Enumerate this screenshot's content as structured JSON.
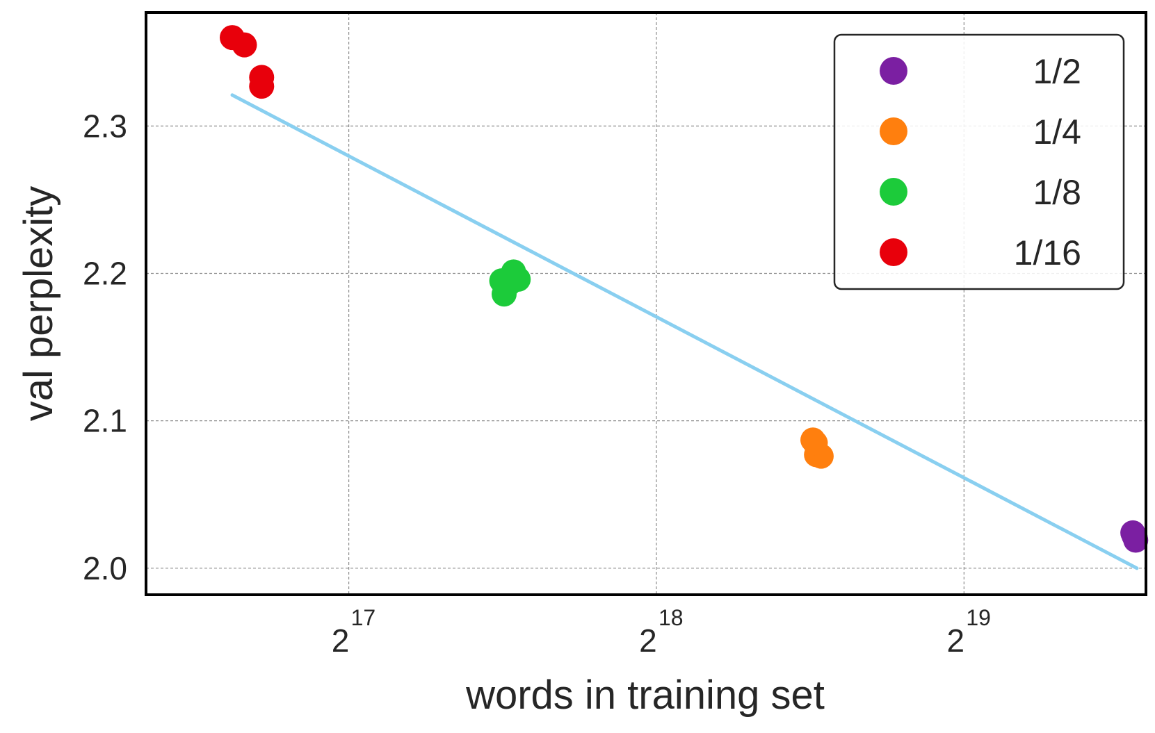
{
  "chart_data": {
    "type": "scatter",
    "title": "",
    "xlabel": "words in training set",
    "ylabel": "val perplexity",
    "x_scale": "log2",
    "x_ticks": [
      {
        "value": 131072,
        "base": "2",
        "exp": "17"
      },
      {
        "value": 262144,
        "base": "2",
        "exp": "18"
      },
      {
        "value": 524288,
        "base": "2",
        "exp": "19"
      }
    ],
    "y_ticks": [
      {
        "value": 2.0,
        "label": "2.0"
      },
      {
        "value": 2.1,
        "label": "2.1"
      },
      {
        "value": 2.2,
        "label": "2.2"
      },
      {
        "value": 2.3,
        "label": "2.3"
      }
    ],
    "xlim": [
      83000,
      790000
    ],
    "ylim": [
      1.982,
      2.377
    ],
    "grid": true,
    "legend_position": "top-right",
    "series": [
      {
        "name": "1/2",
        "color": "#7b1fa2",
        "points": [
          [
            767000,
            2.024
          ],
          [
            769000,
            2.022
          ],
          [
            772000,
            2.019
          ],
          [
            771000,
            2.021
          ]
        ]
      },
      {
        "name": "1/4",
        "color": "#ff7f0e",
        "points": [
          [
            373000,
            2.087
          ],
          [
            376000,
            2.077
          ],
          [
            380000,
            2.076
          ],
          [
            375000,
            2.085
          ]
        ]
      },
      {
        "name": "1/8",
        "color": "#1ccb3a",
        "points": [
          [
            185000,
            2.195
          ],
          [
            186000,
            2.186
          ],
          [
            188000,
            2.193
          ],
          [
            190000,
            2.201
          ],
          [
            192000,
            2.196
          ]
        ]
      },
      {
        "name": "1/16",
        "color": "#e8000b",
        "points": [
          [
            100800,
            2.36
          ],
          [
            103600,
            2.355
          ],
          [
            107700,
            2.333
          ],
          [
            107700,
            2.327
          ]
        ]
      }
    ],
    "trend_line": {
      "color": "#89cff0",
      "points": [
        [
          100800,
          2.321
        ],
        [
          774000,
          2.0
        ]
      ]
    }
  }
}
